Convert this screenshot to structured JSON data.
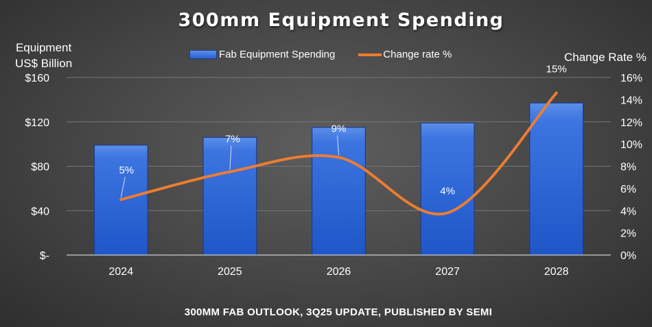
{
  "chart_data": {
    "type": "bar",
    "title": "300mm Equipment Spending",
    "xlabel": "",
    "ylabel": "Equipment US$ Billion",
    "ylabel_lines": [
      "Equipment",
      "US$ Billion"
    ],
    "y2label": "Change Rate %",
    "categories": [
      "2024",
      "2025",
      "2026",
      "2027",
      "2028"
    ],
    "ylim": [
      0,
      160
    ],
    "y_ticks": [
      0,
      40,
      80,
      120,
      160
    ],
    "y_tick_labels": [
      "$-",
      "$40",
      "$80",
      "$120",
      "$160"
    ],
    "y2lim": [
      0,
      16
    ],
    "y2_ticks": [
      0,
      2,
      4,
      6,
      8,
      10,
      12,
      14,
      16
    ],
    "y2_tick_labels": [
      "0%",
      "2%",
      "4%",
      "6%",
      "8%",
      "10%",
      "12%",
      "14%",
      "16%"
    ],
    "grid": true,
    "legend_position": "top-center",
    "series": [
      {
        "name": "Fab Equipment Spending",
        "type": "bar",
        "axis": "left",
        "color": "#2f6bdc",
        "values": [
          99,
          106,
          115,
          119,
          137
        ]
      },
      {
        "name": "Change rate %",
        "type": "line",
        "axis": "right",
        "color": "#ed7d31",
        "values": [
          5,
          7.5,
          8.8,
          3.8,
          14.6
        ],
        "data_labels": [
          "5%",
          "7%",
          "9%",
          "4%",
          "15%"
        ]
      }
    ],
    "source": "300MM FAB OUTLOOK, 3Q25 UPDATE, PUBLISHED BY SEMI"
  }
}
